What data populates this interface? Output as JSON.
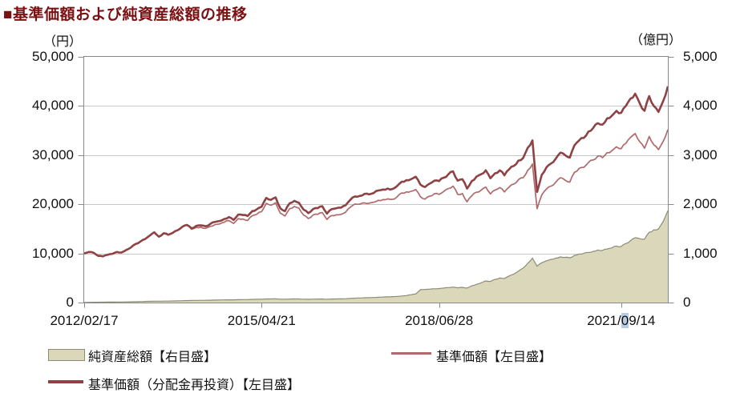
{
  "title": "■基準価額および純資産総額の推移",
  "left_axis_unit": "（円）",
  "right_axis_unit": "（億円）",
  "legend": {
    "assets": "純資産総額【右目盛】",
    "nav": "基準価額【左目盛】",
    "nav_reinvested": "基準価額（分配金再投資）【左目盛】"
  },
  "colors": {
    "title": "#7b1013",
    "area_fill": "#dbd7ba",
    "area_stroke": "#8c8c78",
    "nav_line": "#b06a6c",
    "nav_reinvested_line": "#8f4244",
    "grid": "#c6c6c6",
    "border": "#8a8a8a",
    "text": "#111111",
    "selection_highlight": "#b8cce4"
  },
  "chart_data": {
    "type": "line",
    "x_unit": "month",
    "x_start": "2012/02",
    "x_end": "2022/07",
    "grid": true,
    "legend_position": "bottom",
    "x_ticks": [
      {
        "label": "2012/02/17",
        "month": 0
      },
      {
        "label": "2015/04/21",
        "month": 38
      },
      {
        "label": "2018/06/28",
        "month": 76
      },
      {
        "label": "2021/09/14",
        "month": 115,
        "highlight_char": 5
      }
    ],
    "left_axis": {
      "min": 0,
      "max": 50000,
      "tick_step": 10000,
      "ticks": [
        {
          "v": 50000,
          "label": "50,000"
        },
        {
          "v": 40000,
          "label": "40,000"
        },
        {
          "v": 30000,
          "label": "30,000"
        },
        {
          "v": 20000,
          "label": "20,000"
        },
        {
          "v": 10000,
          "label": "10,000"
        },
        {
          "v": 0,
          "label": "0"
        }
      ]
    },
    "right_axis": {
      "min": 0,
      "max": 5000,
      "tick_step": 1000,
      "ticks": [
        {
          "v": 5000,
          "label": "5,000"
        },
        {
          "v": 4000,
          "label": "4,000"
        },
        {
          "v": 3000,
          "label": "3,000"
        },
        {
          "v": 2000,
          "label": "2,000"
        },
        {
          "v": 1000,
          "label": "1,000"
        },
        {
          "v": 0,
          "label": "0"
        }
      ]
    },
    "series": [
      {
        "name": "純資産総額【右目盛】",
        "axis": "right",
        "type": "area",
        "values": [
          3,
          5,
          6,
          7,
          8,
          9,
          10,
          11,
          12,
          13,
          15,
          17,
          19,
          22,
          25,
          28,
          27,
          29,
          30,
          32,
          34,
          37,
          40,
          42,
          44,
          45,
          46,
          48,
          50,
          52,
          54,
          56,
          55,
          58,
          60,
          61,
          64,
          66,
          68,
          74,
          73,
          76,
          70,
          68,
          72,
          74,
          73,
          69,
          67,
          70,
          71,
          73,
          68,
          72,
          74,
          75,
          78,
          84,
          90,
          93,
          97,
          99,
          103,
          108,
          112,
          116,
          120,
          126,
          134,
          142,
          160,
          175,
          260,
          265,
          272,
          280,
          285,
          295,
          305,
          315,
          300,
          310,
          295,
          340,
          370,
          400,
          440,
          430,
          470,
          500,
          490,
          540,
          580,
          640,
          700,
          800,
          905,
          740,
          810,
          850,
          880,
          905,
          930,
          920,
          910,
          960,
          990,
          1000,
          1020,
          1040,
          1070,
          1060,
          1090,
          1110,
          1150,
          1140,
          1200,
          1260,
          1320,
          1300,
          1290,
          1430,
          1480,
          1500,
          1650,
          1870
        ]
      },
      {
        "name": "基準価額【左目盛】",
        "axis": "left",
        "type": "line",
        "values": [
          10000,
          10300,
          10150,
          9500,
          9400,
          9700,
          9900,
          10300,
          10200,
          10700,
          11200,
          11900,
          12400,
          12900,
          13600,
          14300,
          13400,
          14100,
          13800,
          14200,
          14700,
          15400,
          15800,
          14900,
          15300,
          15350,
          15100,
          15500,
          15850,
          16000,
          16350,
          16700,
          16100,
          17100,
          17000,
          16700,
          17650,
          18000,
          18500,
          20200,
          19800,
          20300,
          18200,
          17600,
          19100,
          19550,
          19200,
          17800,
          17100,
          17800,
          17950,
          18300,
          16900,
          17700,
          17850,
          17950,
          18400,
          19400,
          20050,
          20000,
          20300,
          20200,
          20400,
          20800,
          20950,
          21100,
          21000,
          21500,
          22300,
          22500,
          22650,
          23000,
          21550,
          21050,
          21650,
          22150,
          22000,
          22600,
          23200,
          23700,
          22000,
          22200,
          20500,
          21700,
          22450,
          22850,
          23500,
          22100,
          22900,
          23400,
          22500,
          23500,
          24100,
          25000,
          25400,
          26900,
          28200,
          19100,
          21900,
          23100,
          23700,
          24500,
          25400,
          24900,
          24500,
          26500,
          27300,
          27500,
          28500,
          29000,
          29800,
          29500,
          30500,
          30900,
          31700,
          31300,
          32400,
          33600,
          34400,
          32700,
          31400,
          33800,
          32100,
          31100,
          32800,
          35200
        ]
      },
      {
        "name": "基準価額（分配金再投資）【左目盛】",
        "axis": "left",
        "type": "line",
        "values": [
          10000,
          10300,
          10150,
          9500,
          9400,
          9700,
          9900,
          10300,
          10200,
          10700,
          11200,
          11900,
          12400,
          12900,
          13600,
          14300,
          13400,
          14100,
          13800,
          14200,
          14700,
          15400,
          15800,
          15100,
          15600,
          15700,
          15500,
          16000,
          16400,
          16600,
          17000,
          17400,
          16800,
          17900,
          17800,
          17600,
          18600,
          19000,
          19500,
          21300,
          20900,
          21400,
          19200,
          18600,
          20200,
          20700,
          20300,
          18900,
          18200,
          19000,
          19200,
          19600,
          18100,
          19000,
          19200,
          19300,
          19800,
          20900,
          21600,
          21700,
          22100,
          22000,
          22300,
          22800,
          23000,
          23200,
          23100,
          23700,
          24600,
          24900,
          25100,
          25600,
          24000,
          23500,
          24200,
          24800,
          24700,
          25400,
          26100,
          26700,
          24800,
          25100,
          23200,
          24700,
          25600,
          26100,
          26900,
          25300,
          26300,
          26900,
          25900,
          27100,
          27800,
          28900,
          29400,
          31500,
          33000,
          22500,
          26000,
          27500,
          28300,
          29300,
          30500,
          30000,
          29500,
          32000,
          33000,
          33500,
          34800,
          35500,
          36500,
          36200,
          37500,
          38000,
          39000,
          38600,
          40000,
          41500,
          42500,
          40500,
          39000,
          42000,
          40000,
          38800,
          41000,
          44000
        ]
      }
    ]
  }
}
